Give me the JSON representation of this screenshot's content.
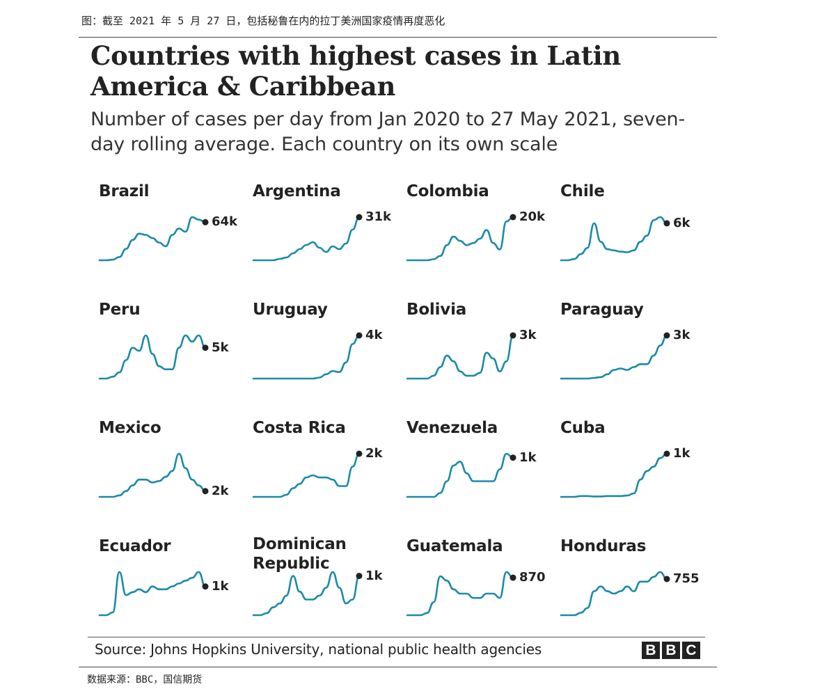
{
  "caption": "图：截至 2021 年 5 月 27 日，包括秘鲁在内的拉丁美洲国家疫情再度恶化",
  "title": "Countries with highest cases in Latin America & Caribbean",
  "subtitle": "Number of cases per day from Jan 2020 to 27 May 2021, seven-day rolling average. Each country on its own scale",
  "source": "Source: Johns Hopkins University, national public health agencies",
  "logo_letters": [
    "B",
    "B",
    "C"
  ],
  "footer": "数据来源：BBC，国信期货",
  "colors": {
    "line": "#1b8aa8",
    "dot": "#222222",
    "text": "#222222"
  },
  "chart_data": {
    "type": "line",
    "layout": "small-multiples",
    "x_range": [
      "2020-01",
      "2021-05-27"
    ],
    "x_points": [
      "2020-01",
      "2020-02",
      "2020-03",
      "2020-04",
      "2020-05",
      "2020-06",
      "2020-07",
      "2020-08",
      "2020-09",
      "2020-10",
      "2020-11",
      "2020-12",
      "2021-01",
      "2021-02",
      "2021-03",
      "2021-04",
      "2021-05"
    ],
    "panels": [
      {
        "country": "Brazil",
        "end_label": "64k",
        "values": [
          0,
          0,
          1,
          5,
          18,
          32,
          42,
          40,
          35,
          28,
          22,
          40,
          50,
          45,
          68,
          64,
          60
        ]
      },
      {
        "country": "Argentina",
        "end_label": "31k",
        "values": [
          0,
          0,
          0,
          0,
          1,
          2,
          5,
          8,
          11,
          13,
          9,
          6,
          10,
          8,
          12,
          22,
          31
        ]
      },
      {
        "country": "Colombia",
        "end_label": "20k",
        "values": [
          0,
          0,
          0,
          0,
          0.5,
          2,
          7,
          11,
          9,
          7,
          8,
          10,
          14,
          8,
          5,
          18,
          20
        ]
      },
      {
        "country": "Chile",
        "end_label": "6k",
        "values": [
          0,
          0,
          0.2,
          1,
          2,
          6,
          3,
          1.8,
          1.6,
          1.4,
          1.3,
          1.6,
          3,
          4,
          6.5,
          7,
          6
        ]
      },
      {
        "country": "Peru",
        "end_label": "5k",
        "values": [
          0,
          0,
          0.3,
          1,
          3,
          5,
          4.5,
          7,
          4,
          2,
          1.5,
          1.5,
          5,
          7,
          6,
          7,
          5
        ]
      },
      {
        "country": "Uruguay",
        "end_label": "4k",
        "values": [
          0,
          0,
          0,
          0,
          0,
          0,
          0,
          0,
          0,
          0,
          0.1,
          0.4,
          0.7,
          0.6,
          1.5,
          3.2,
          4
        ]
      },
      {
        "country": "Bolivia",
        "end_label": "3k",
        "values": [
          0,
          0,
          0,
          0,
          0.2,
          0.8,
          1.6,
          1.2,
          0.5,
          0.2,
          0.2,
          0.4,
          1.8,
          1.4,
          0.5,
          1.2,
          3
        ]
      },
      {
        "country": "Paraguay",
        "end_label": "3k",
        "values": [
          0,
          0,
          0,
          0,
          0,
          0.05,
          0.1,
          0.3,
          0.6,
          0.7,
          0.6,
          0.8,
          1,
          1,
          1.6,
          2.3,
          3
        ]
      },
      {
        "country": "Mexico",
        "end_label": "2k",
        "values": [
          0,
          0,
          0,
          0.5,
          2,
          4,
          6,
          6,
          5,
          5.5,
          7,
          9,
          15,
          10,
          6,
          4,
          2
        ]
      },
      {
        "country": "Costa Rica",
        "end_label": "2k",
        "values": [
          0,
          0,
          0,
          0,
          0,
          0.1,
          0.4,
          0.6,
          0.9,
          1,
          0.9,
          0.9,
          0.8,
          0.5,
          0.5,
          1.4,
          2
        ]
      },
      {
        "country": "Venezuela",
        "end_label": "1k",
        "values": [
          0,
          0,
          0,
          0,
          0,
          0.1,
          0.4,
          0.8,
          0.9,
          0.6,
          0.4,
          0.4,
          0.4,
          0.4,
          0.7,
          1.1,
          1
        ]
      },
      {
        "country": "Cuba",
        "end_label": "1k",
        "values": [
          0,
          0,
          0,
          0.02,
          0.02,
          0.01,
          0.01,
          0.02,
          0.02,
          0.02,
          0.03,
          0.08,
          0.4,
          0.6,
          0.7,
          0.9,
          1
        ]
      },
      {
        "country": "Ecuador",
        "end_label": "1k",
        "values": [
          0,
          0,
          0.1,
          1.5,
          0.7,
          0.8,
          0.9,
          0.8,
          1,
          0.9,
          0.9,
          1,
          1.1,
          1.2,
          1.3,
          1.5,
          1
        ]
      },
      {
        "country": "Dominican Republic",
        "end_label": "1k",
        "values": [
          0,
          0,
          0.05,
          0.2,
          0.3,
          0.5,
          1,
          0.6,
          0.4,
          0.4,
          0.5,
          0.7,
          1.1,
          0.7,
          0.3,
          0.4,
          1
        ]
      },
      {
        "country": "Guatemala",
        "end_label": "870",
        "values": [
          0,
          0,
          0,
          0.05,
          0.3,
          0.9,
          0.8,
          0.6,
          0.5,
          0.5,
          0.4,
          0.4,
          0.5,
          0.5,
          0.4,
          1,
          0.87
        ]
      },
      {
        "country": "Honduras",
        "end_label": "755",
        "values": [
          0,
          0,
          0,
          0.05,
          0.15,
          0.5,
          0.6,
          0.5,
          0.45,
          0.5,
          0.6,
          0.5,
          0.7,
          0.7,
          0.8,
          0.9,
          0.755
        ]
      }
    ]
  }
}
